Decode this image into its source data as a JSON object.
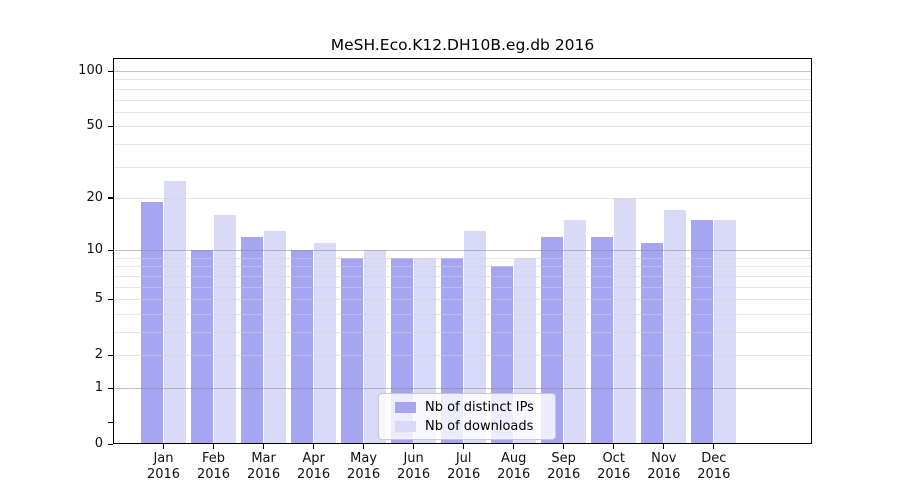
{
  "chart_data": {
    "type": "bar",
    "title": "MeSH.Eco.K12.DH10B.eg.db 2016",
    "year_label": "2016",
    "categories": [
      "Jan",
      "Feb",
      "Mar",
      "Apr",
      "May",
      "Jun",
      "Jul",
      "Aug",
      "Sep",
      "Oct",
      "Nov",
      "Dec"
    ],
    "series": [
      {
        "name": "Nb of distinct IPs",
        "color": "#a5a5f2",
        "values": [
          19,
          10,
          12,
          10,
          9,
          9,
          9,
          8,
          12,
          12,
          11,
          15
        ]
      },
      {
        "name": "Nb of downloads",
        "color": "#d9d9f8",
        "values": [
          25,
          16,
          13,
          11,
          10,
          9,
          13,
          9,
          15,
          20,
          17,
          15
        ]
      }
    ],
    "yscale": "log1p",
    "ylim": [
      0,
      120
    ],
    "y_tick_values": [
      0,
      1,
      2,
      5,
      10,
      20,
      50,
      100
    ],
    "y_tick_labels": [
      "0",
      "1",
      "2",
      "5",
      "10",
      "20",
      "50",
      "100"
    ],
    "y_major_gridlines": [
      1,
      10,
      100
    ],
    "y_minor_gridlines": [
      2,
      3,
      4,
      5,
      6,
      7,
      8,
      9,
      20,
      30,
      40,
      50,
      60,
      70,
      80,
      90
    ],
    "y_minor_ticks_unlabeled": [
      0.3
    ],
    "grid": "on",
    "legend_position": "bottom-center",
    "axis_color": "#000000",
    "major_grid_color": "#8c8c8c",
    "minor_grid_color": "#d2d2d2"
  }
}
